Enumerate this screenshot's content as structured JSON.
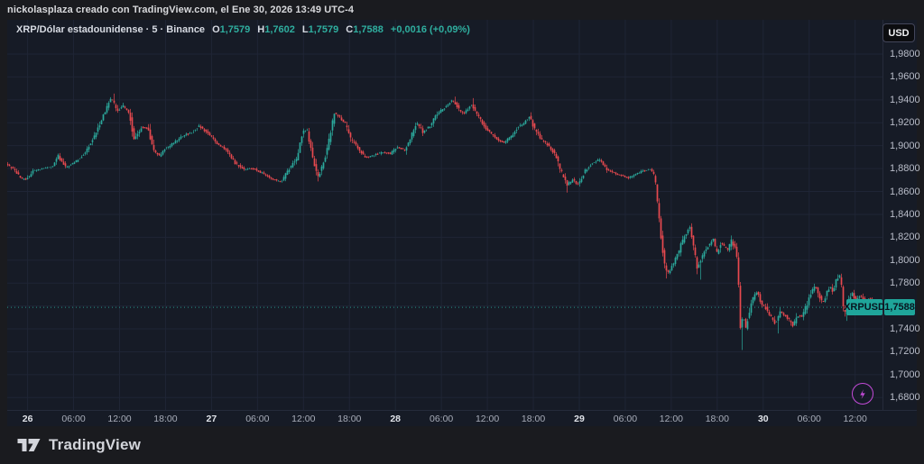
{
  "header": {
    "attribution": "nickolasplaza creado con TradingView.com, el Ene 30, 2026 13:49 UTC-4"
  },
  "legend": {
    "title": "XRP/Dólar estadounidense · 5 · Binance",
    "ohlc": [
      {
        "k": "O",
        "v": "1,7579"
      },
      {
        "k": "H",
        "v": "1,7602"
      },
      {
        "k": "L",
        "v": "1,7579"
      },
      {
        "k": "C",
        "v": "1,7588"
      }
    ],
    "change": "+0,0016 (+0,09%)"
  },
  "price_scale": {
    "currency_button": "USD",
    "labels": [
      {
        "text": "1,9800",
        "value": 1.98
      },
      {
        "text": "1,9600",
        "value": 1.96
      },
      {
        "text": "1,9400",
        "value": 1.94
      },
      {
        "text": "1,9200",
        "value": 1.92
      },
      {
        "text": "1,9000",
        "value": 1.9
      },
      {
        "text": "1,8800",
        "value": 1.88
      },
      {
        "text": "1,8600",
        "value": 1.86
      },
      {
        "text": "1,8400",
        "value": 1.84
      },
      {
        "text": "1,8200",
        "value": 1.82
      },
      {
        "text": "1,8000",
        "value": 1.8
      },
      {
        "text": "1,7800",
        "value": 1.78
      },
      {
        "text": "1,7600",
        "value": 1.76,
        "hidden": true
      },
      {
        "text": "1,7400",
        "value": 1.74
      },
      {
        "text": "1,7200",
        "value": 1.72
      },
      {
        "text": "1,7000",
        "value": 1.7
      },
      {
        "text": "1,6800",
        "value": 1.68
      }
    ],
    "last_price_label": "1,7588"
  },
  "symbol_badge": "XRPUSD",
  "time_axis": [
    {
      "label": "26",
      "major": true
    },
    {
      "label": "06:00"
    },
    {
      "label": "12:00"
    },
    {
      "label": "18:00"
    },
    {
      "label": "27",
      "major": true
    },
    {
      "label": "06:00"
    },
    {
      "label": "12:00"
    },
    {
      "label": "18:00"
    },
    {
      "label": "28",
      "major": true
    },
    {
      "label": "06:00"
    },
    {
      "label": "12:00"
    },
    {
      "label": "18:00"
    },
    {
      "label": "29",
      "major": true
    },
    {
      "label": "06:00"
    },
    {
      "label": "12:00"
    },
    {
      "label": "18:00"
    },
    {
      "label": "30",
      "major": true
    },
    {
      "label": "06:00"
    },
    {
      "label": "12:00"
    }
  ],
  "footer": {
    "brand": "TradingView"
  },
  "colors": {
    "background": "#1a1b1f",
    "panel": "#161b26",
    "grid": "#1f2535",
    "up": "#2ba99c",
    "down": "#e8494f",
    "badge": "#1fa59a",
    "badge_text": "#081520",
    "last_price_line": "#2ba99c",
    "axis_text": "#b9bdc9",
    "purple": "#c44bd9"
  },
  "chart_data": {
    "type": "candlestick",
    "symbol": "XRPUSD",
    "exchange": "Binance",
    "interval": "5",
    "title": "XRP/Dólar estadounidense · 5 · Binance",
    "last_price": 1.7588,
    "current_bar": {
      "open": 1.7579,
      "high": 1.7602,
      "low": 1.7579,
      "close": 1.7588,
      "change": 0.0016,
      "change_pct": 0.09
    },
    "ylim": [
      1.68,
      1.98
    ],
    "y_tick_step": 0.02,
    "x_ticks": [
      "26",
      "06:00",
      "12:00",
      "18:00",
      "27",
      "06:00",
      "12:00",
      "18:00",
      "28",
      "06:00",
      "12:00",
      "18:00",
      "29",
      "06:00",
      "12:00",
      "18:00",
      "30",
      "06:00",
      "12:00"
    ],
    "grid": true,
    "price_path": [
      [
        8,
        1.884
      ],
      [
        16,
        1.88
      ],
      [
        24,
        1.872
      ],
      [
        30,
        1.87
      ],
      [
        38,
        1.878
      ],
      [
        50,
        1.88
      ],
      [
        60,
        1.882
      ],
      [
        66,
        1.891
      ],
      [
        74,
        1.881
      ],
      [
        84,
        1.885
      ],
      [
        95,
        1.893
      ],
      [
        105,
        1.906
      ],
      [
        115,
        1.925
      ],
      [
        125,
        1.942
      ],
      [
        132,
        1.93
      ],
      [
        138,
        1.935
      ],
      [
        145,
        1.928
      ],
      [
        150,
        1.905
      ],
      [
        158,
        1.916
      ],
      [
        165,
        1.915
      ],
      [
        172,
        1.896
      ],
      [
        178,
        1.891
      ],
      [
        186,
        1.898
      ],
      [
        195,
        1.903
      ],
      [
        205,
        1.909
      ],
      [
        215,
        1.912
      ],
      [
        222,
        1.917
      ],
      [
        232,
        1.911
      ],
      [
        242,
        1.902
      ],
      [
        252,
        1.896
      ],
      [
        262,
        1.885
      ],
      [
        272,
        1.879
      ],
      [
        282,
        1.88
      ],
      [
        292,
        1.876
      ],
      [
        303,
        1.871
      ],
      [
        313,
        1.868
      ],
      [
        322,
        1.88
      ],
      [
        330,
        1.889
      ],
      [
        337,
        1.912
      ],
      [
        342,
        1.914
      ],
      [
        348,
        1.888
      ],
      [
        354,
        1.873
      ],
      [
        360,
        1.884
      ],
      [
        366,
        1.905
      ],
      [
        372,
        1.929
      ],
      [
        378,
        1.925
      ],
      [
        384,
        1.919
      ],
      [
        390,
        1.906
      ],
      [
        398,
        1.898
      ],
      [
        406,
        1.89
      ],
      [
        414,
        1.891
      ],
      [
        424,
        1.894
      ],
      [
        434,
        1.893
      ],
      [
        442,
        1.899
      ],
      [
        450,
        1.896
      ],
      [
        458,
        1.91
      ],
      [
        463,
        1.921
      ],
      [
        470,
        1.912
      ],
      [
        478,
        1.917
      ],
      [
        486,
        1.928
      ],
      [
        494,
        1.933
      ],
      [
        503,
        1.94
      ],
      [
        510,
        1.932
      ],
      [
        516,
        1.928
      ],
      [
        523,
        1.936
      ],
      [
        530,
        1.928
      ],
      [
        538,
        1.917
      ],
      [
        545,
        1.911
      ],
      [
        553,
        1.905
      ],
      [
        560,
        1.903
      ],
      [
        568,
        1.908
      ],
      [
        575,
        1.916
      ],
      [
        582,
        1.92
      ],
      [
        588,
        1.925
      ],
      [
        595,
        1.913
      ],
      [
        602,
        1.905
      ],
      [
        610,
        1.9
      ],
      [
        618,
        1.89
      ],
      [
        624,
        1.876
      ],
      [
        630,
        1.866
      ],
      [
        636,
        1.87
      ],
      [
        642,
        1.866
      ],
      [
        650,
        1.878
      ],
      [
        658,
        1.885
      ],
      [
        666,
        1.888
      ],
      [
        674,
        1.879
      ],
      [
        682,
        1.876
      ],
      [
        690,
        1.874
      ],
      [
        698,
        1.872
      ],
      [
        706,
        1.875
      ],
      [
        714,
        1.878
      ],
      [
        722,
        1.879
      ],
      [
        727,
        1.874
      ],
      [
        730,
        1.85
      ],
      [
        734,
        1.82
      ],
      [
        738,
        1.795
      ],
      [
        742,
        1.789
      ],
      [
        747,
        1.796
      ],
      [
        752,
        1.804
      ],
      [
        757,
        1.815
      ],
      [
        762,
        1.824
      ],
      [
        766,
        1.829
      ],
      [
        770,
        1.812
      ],
      [
        774,
        1.794
      ],
      [
        778,
        1.8
      ],
      [
        783,
        1.809
      ],
      [
        788,
        1.814
      ],
      [
        792,
        1.818
      ],
      [
        796,
        1.806
      ],
      [
        800,
        1.815
      ],
      [
        804,
        1.812
      ],
      [
        808,
        1.809
      ],
      [
        812,
        1.817
      ],
      [
        816,
        1.81
      ],
      [
        819,
        1.799
      ],
      [
        822,
        1.741
      ],
      [
        825,
        1.751
      ],
      [
        828,
        1.741
      ],
      [
        833,
        1.76
      ],
      [
        837,
        1.768
      ],
      [
        841,
        1.773
      ],
      [
        845,
        1.762
      ],
      [
        849,
        1.76
      ],
      [
        853,
        1.752
      ],
      [
        857,
        1.75
      ],
      [
        861,
        1.744
      ],
      [
        866,
        1.755
      ],
      [
        871,
        1.752
      ],
      [
        876,
        1.748
      ],
      [
        880,
        1.742
      ],
      [
        885,
        1.752
      ],
      [
        890,
        1.751
      ],
      [
        896,
        1.762
      ],
      [
        901,
        1.772
      ],
      [
        905,
        1.778
      ],
      [
        909,
        1.77
      ],
      [
        913,
        1.762
      ],
      [
        917,
        1.77
      ],
      [
        921,
        1.778
      ],
      [
        925,
        1.772
      ],
      [
        929,
        1.785
      ],
      [
        933,
        1.787
      ],
      [
        937,
        1.752
      ],
      [
        941,
        1.76
      ],
      [
        945,
        1.772
      ],
      [
        950,
        1.765
      ],
      [
        955,
        1.77
      ],
      [
        960,
        1.762
      ],
      [
        965,
        1.768
      ],
      [
        970,
        1.758
      ],
      [
        977,
        1.7588
      ]
    ],
    "special_wicks": [
      [
        125,
        1.9455
      ],
      [
        503,
        1.9428
      ],
      [
        523,
        1.9415
      ],
      [
        628,
        1.859
      ],
      [
        738,
        1.784
      ],
      [
        775,
        1.783
      ],
      [
        822,
        1.7215
      ],
      [
        862,
        1.736
      ],
      [
        937,
        1.747
      ]
    ]
  }
}
